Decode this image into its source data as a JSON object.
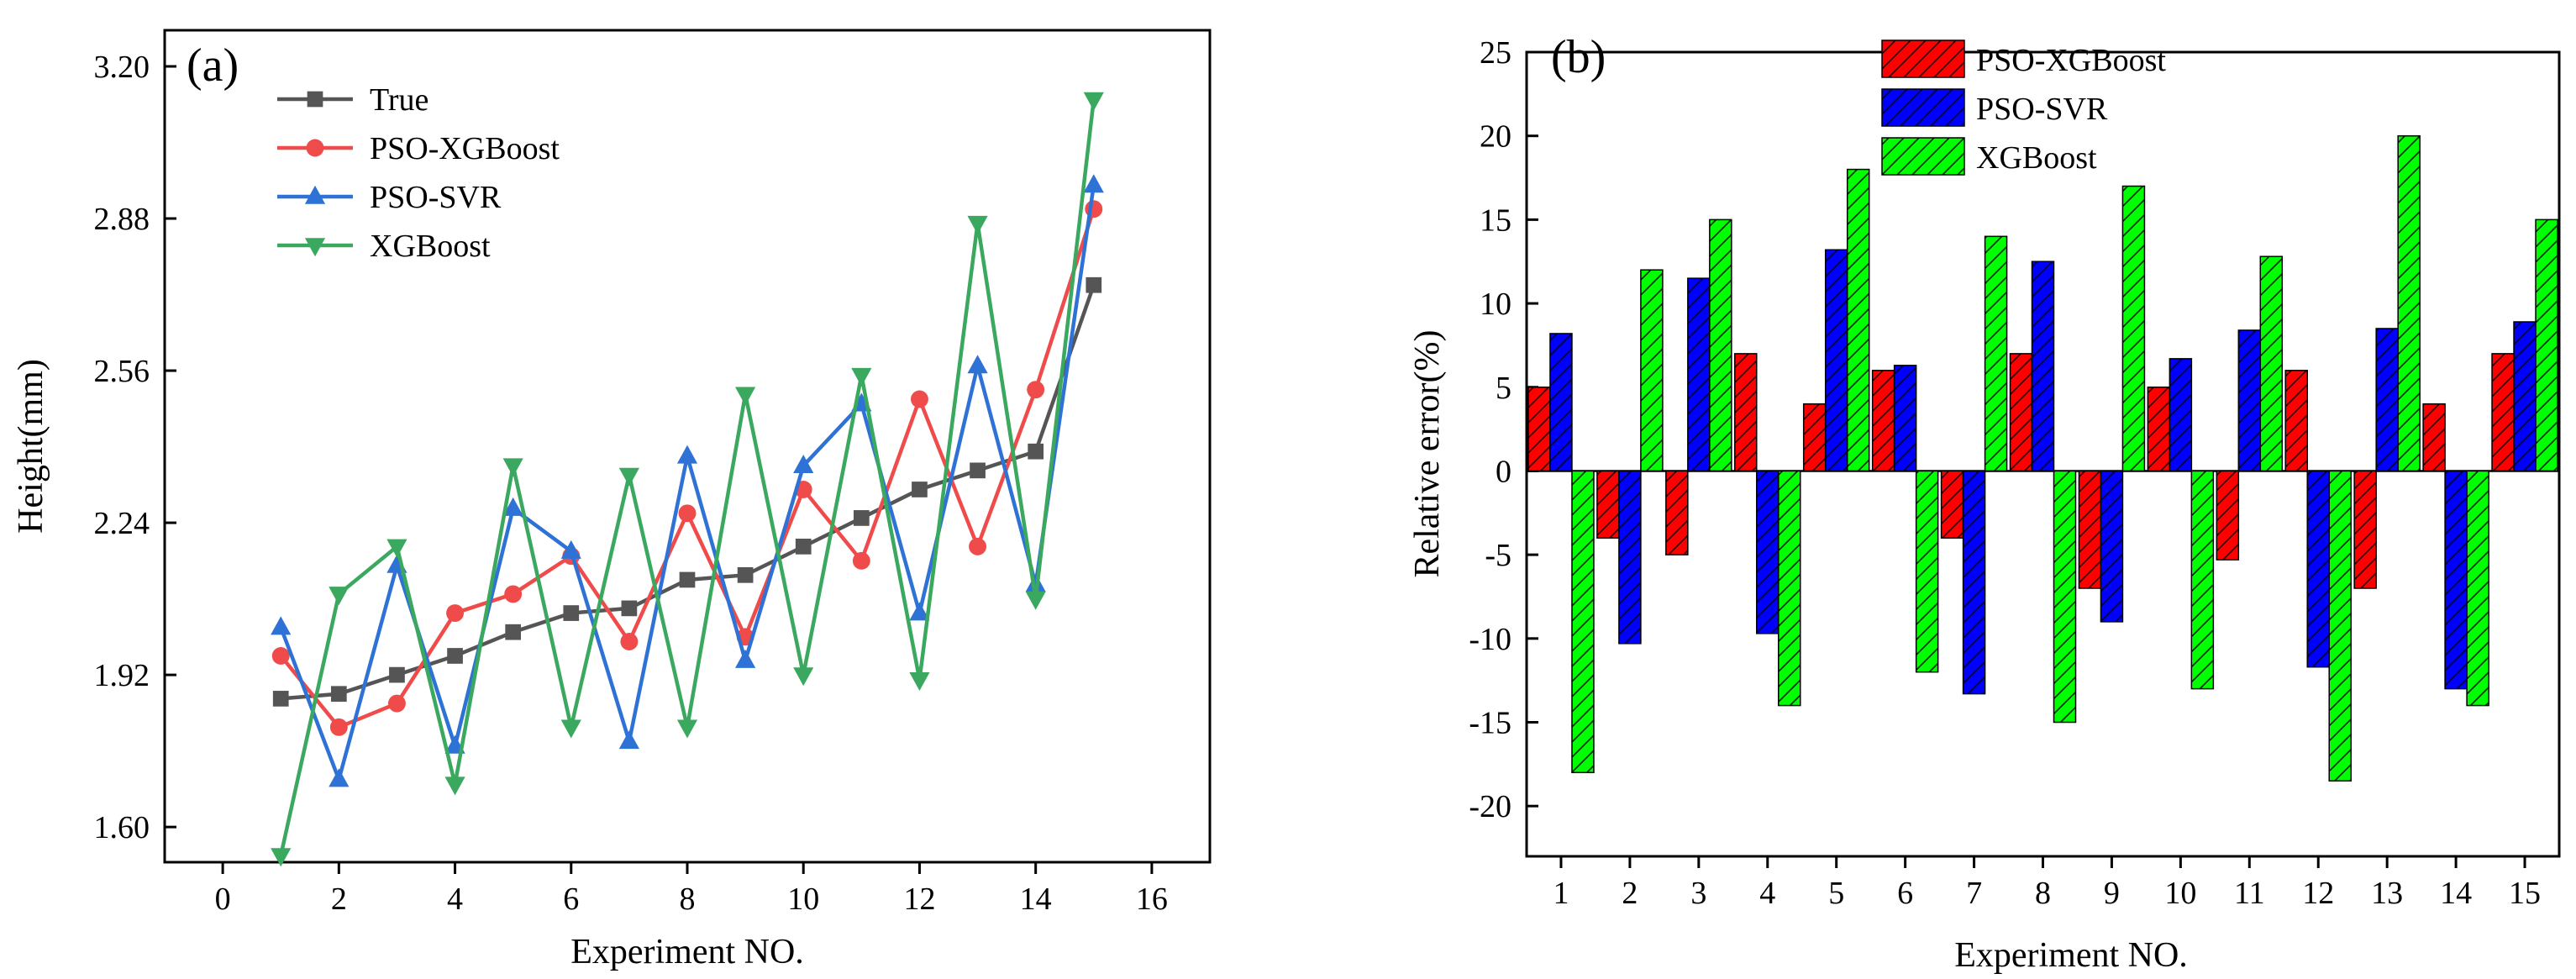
{
  "chart_data": [
    {
      "panel_label": "(a)",
      "type": "line",
      "xlabel": "Experiment NO.",
      "ylabel": "Height(mm)",
      "xlim": [
        -1,
        17
      ],
      "ylim": [
        1.526,
        3.276
      ],
      "xticks": [
        0,
        2,
        4,
        6,
        8,
        10,
        12,
        14,
        16
      ],
      "xtick_labels": [
        "0",
        "2",
        "4",
        "6",
        "8",
        "10",
        "12",
        "14",
        "16"
      ],
      "yticks": [
        1.6,
        1.92,
        2.24,
        2.56,
        2.88,
        3.2
      ],
      "ytick_labels": [
        "1.60",
        "1.92",
        "2.24",
        "2.56",
        "2.88",
        "3.20"
      ],
      "legend_position": "top-left",
      "x": [
        1,
        2,
        3,
        4,
        5,
        6,
        7,
        8,
        9,
        10,
        11,
        12,
        13,
        14,
        15
      ],
      "series": [
        {
          "name": "True",
          "color": "#555555",
          "marker": "square",
          "values": [
            1.87,
            1.88,
            1.92,
            1.96,
            2.01,
            2.05,
            2.06,
            2.12,
            2.13,
            2.19,
            2.25,
            2.31,
            2.35,
            2.39,
            2.74
          ]
        },
        {
          "name": "PSO-XGBoost",
          "color": "#ef4b4b",
          "marker": "circle",
          "values": [
            1.96,
            1.81,
            1.86,
            2.05,
            2.09,
            2.17,
            1.99,
            2.26,
            2.0,
            2.31,
            2.16,
            2.5,
            2.19,
            2.52,
            2.9
          ]
        },
        {
          "name": "PSO-SVR",
          "color": "#2f72d6",
          "marker": "triangle-up",
          "values": [
            2.02,
            1.7,
            2.15,
            1.77,
            2.27,
            2.18,
            1.78,
            2.38,
            1.95,
            2.36,
            2.49,
            2.05,
            2.57,
            2.11,
            2.95
          ]
        },
        {
          "name": "XGBoost",
          "color": "#3aa85e",
          "marker": "triangle-down",
          "values": [
            1.54,
            2.09,
            2.19,
            1.69,
            2.36,
            1.81,
            2.34,
            1.81,
            2.51,
            1.92,
            2.55,
            1.91,
            2.87,
            2.08,
            3.13
          ]
        }
      ]
    },
    {
      "panel_label": "(b)",
      "type": "bar",
      "xlabel": "Experiment NO.",
      "ylabel": "Relative error(%)",
      "ylim": [
        -23,
        25
      ],
      "yticks": [
        -20,
        -15,
        -10,
        -5,
        0,
        5,
        10,
        15,
        20,
        25
      ],
      "ytick_labels": [
        "-20",
        "-15",
        "-10",
        "-5",
        "0",
        "5",
        "10",
        "15",
        "20",
        "25"
      ],
      "categories": [
        "1",
        "2",
        "3",
        "4",
        "5",
        "6",
        "7",
        "8",
        "9",
        "10",
        "11",
        "12",
        "13",
        "14",
        "15"
      ],
      "legend_position": "top-center",
      "hatch": "diagonal",
      "series": [
        {
          "name": "PSO-XGBoost",
          "color": "#ff0000",
          "values": [
            5,
            -4,
            -5,
            7,
            4,
            6,
            -4,
            7,
            -7,
            5,
            -5.3,
            6,
            -7,
            4,
            7
          ]
        },
        {
          "name": "PSO-SVR",
          "color": "#0000ff",
          "values": [
            8.2,
            -10.3,
            11.5,
            -9.7,
            13.2,
            6.3,
            -13.3,
            12.5,
            -9,
            6.7,
            8.4,
            -11.7,
            8.5,
            -13,
            8.9
          ]
        },
        {
          "name": "XGBoost",
          "color": "#00ff00",
          "values": [
            -18,
            12,
            15,
            -14,
            18,
            -12,
            14,
            -15,
            17,
            -13,
            12.8,
            -18.5,
            20,
            -14,
            15
          ]
        }
      ]
    }
  ]
}
